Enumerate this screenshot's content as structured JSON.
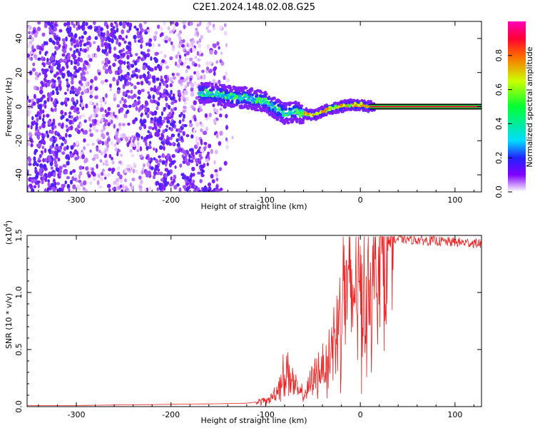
{
  "title": "C2E1.2024.148.02.08.G25",
  "chart_data": [
    {
      "type": "heatmap",
      "title": "C2E1.2024.148.02.08.G25",
      "xlabel": "Height of straight line (km)",
      "ylabel": "Frequency (Hz)",
      "xlim": [
        -352,
        128
      ],
      "ylim": [
        -50,
        50
      ],
      "xticks": [
        -300,
        -200,
        -100,
        0,
        100
      ],
      "yticks": [
        -40,
        -20,
        0,
        20,
        40
      ],
      "colorbar": {
        "label": "Normalized spectral amplitude",
        "range": [
          0,
          1
        ],
        "ticks": [
          "0.0",
          "0.2",
          "0.4",
          "0.6",
          "0.8"
        ]
      },
      "ridge": {
        "x": [
          -160,
          -140,
          -120,
          -100,
          -90,
          -80,
          -70,
          -60,
          -50,
          -40,
          -30,
          -20,
          -10,
          0,
          10,
          128
        ],
        "y": [
          8,
          6,
          5,
          3,
          -1,
          -4,
          -3,
          -4,
          -5,
          -3,
          -1,
          0,
          1,
          1,
          0,
          0
        ]
      },
      "constant_line": {
        "x_start": 10,
        "x_end": 128,
        "y": 0
      }
    },
    {
      "type": "line",
      "xlabel": "Height of straight line (km)",
      "ylabel": "SNR (10 * v/v)",
      "y_multiplier": "(x10^4)",
      "xlim": [
        -352,
        128
      ],
      "ylim": [
        0,
        1.5
      ],
      "xticks": [
        -300,
        -200,
        -100,
        0,
        100
      ],
      "yticks": [
        "0.0",
        "0.5",
        "1.0",
        "1.5"
      ],
      "color": "#ee2222",
      "series": [
        {
          "name": "SNR",
          "x": [
            -352,
            -300,
            -250,
            -200,
            -150,
            -120,
            -110,
            -100,
            -95,
            -90,
            -85,
            -80,
            -75,
            -70,
            -65,
            -60,
            -55,
            -50,
            -45,
            -40,
            -35,
            -30,
            -25,
            -20,
            -15,
            -10,
            -5,
            0,
            5,
            10,
            15,
            20,
            25,
            30,
            35,
            40,
            50,
            60,
            80,
            100,
            128
          ],
          "y": [
            0.01,
            0.01,
            0.015,
            0.02,
            0.025,
            0.03,
            0.04,
            0.05,
            0.07,
            0.12,
            0.2,
            0.28,
            0.32,
            0.18,
            0.12,
            0.1,
            0.15,
            0.25,
            0.3,
            0.35,
            0.4,
            0.5,
            0.7,
            1.0,
            1.05,
            0.95,
            1.1,
            1.0,
            1.1,
            1.1,
            1.2,
            1.35,
            1.38,
            1.42,
            1.45,
            1.47,
            1.47,
            1.46,
            1.45,
            1.44,
            1.43
          ]
        }
      ]
    }
  ]
}
